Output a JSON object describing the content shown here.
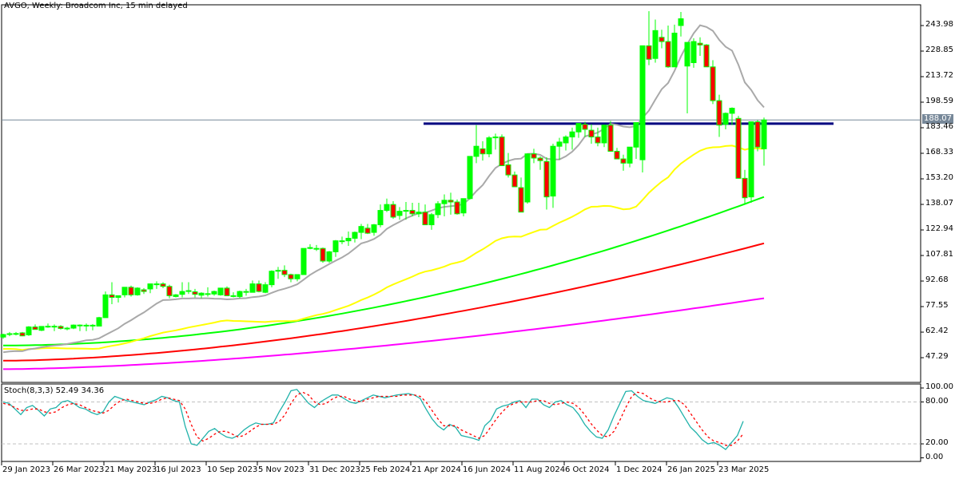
{
  "header": {
    "title": "AVGO, Weekly:  Broadcom Inc, 15 min delayed"
  },
  "stoch_panel": {
    "label": "Stoch(8,3,3) 52.49 34.36",
    "ticks": [
      "100.00",
      "80.00",
      "20.00",
      "0.00"
    ]
  },
  "current_price": "188.07",
  "colors": {
    "bull": "#00FF00",
    "bear": "#FF0000",
    "sma_gray": "#A9A9A9",
    "sma_yellow": "#FFFF00",
    "sma_green": "#00FF00",
    "sma_red": "#FF0000",
    "sma_magenta": "#FF00FF",
    "resistance": "#000080",
    "stoch_main": "#20B2AA",
    "stoch_signal": "#FF0000",
    "price_tag_bg": "#778899"
  },
  "chart_data": [
    {
      "type": "candlestick",
      "title": "AVGO, Weekly:  Broadcom Inc, 15 min delayed",
      "xlabel": "",
      "ylabel": "",
      "ylim": [
        40.0,
        258.0
      ],
      "y_ticks": [
        "243.98",
        "228.85",
        "213.72",
        "198.59",
        "183.46",
        "168.33",
        "153.20",
        "138.07",
        "122.94",
        "107.81",
        "92.68",
        "77.55",
        "62.42",
        "47.29"
      ],
      "x_ticks": [
        "29 Jan 2023",
        "26 Mar 2023",
        "21 May 2023",
        "16 Jul 2023",
        "10 Sep 2023",
        "5 Nov 2023",
        "31 Dec 2023",
        "25 Feb 2024",
        "21 Apr 2024",
        "16 Jun 2024",
        "11 Aug 2024",
        "6 Oct 2024",
        "1 Dec 2024",
        "26 Jan 2025",
        "23 Mar 2025"
      ],
      "current_price": 188.07,
      "horizontal_line": {
        "price": 185.9,
        "color": "#000080",
        "label": "resistance"
      },
      "candles_ohlc": [
        [
          59.5,
          61.5,
          58.5,
          61.0
        ],
        [
          61.0,
          62.5,
          60.0,
          61.5
        ],
        [
          61.5,
          62.5,
          60.5,
          61.6
        ],
        [
          62.0,
          62.5,
          60.0,
          60.2
        ],
        [
          60.8,
          66.0,
          60.2,
          65.5
        ],
        [
          65.5,
          67.0,
          64.0,
          64.0
        ],
        [
          63.5,
          66.0,
          63.0,
          65.8
        ],
        [
          65.8,
          67.5,
          65.0,
          65.9
        ],
        [
          65.9,
          67.0,
          63.0,
          65.9
        ],
        [
          65.8,
          66.5,
          64.0,
          64.6
        ],
        [
          64.6,
          65.5,
          63.5,
          64.8
        ],
        [
          64.8,
          67.0,
          64.2,
          66.6
        ],
        [
          66.6,
          67.0,
          63.0,
          66.3
        ],
        [
          66.3,
          67.5,
          63.0,
          66.5
        ],
        [
          66.5,
          67.2,
          63.5,
          66.5
        ],
        [
          66.0,
          71.5,
          66.0,
          71.0
        ],
        [
          71.0,
          86.5,
          71.0,
          84.5
        ],
        [
          84.5,
          92.0,
          79.0,
          83.0
        ],
        [
          83.0,
          84.0,
          80.0,
          84.0
        ],
        [
          84.5,
          89.0,
          83.0,
          89.0
        ],
        [
          89.0,
          90.0,
          83.5,
          84.5
        ],
        [
          84.5,
          89.0,
          84.0,
          88.5
        ],
        [
          87.5,
          88.5,
          85.0,
          86.5
        ],
        [
          88.0,
          90.5,
          85.5,
          91.0
        ],
        [
          90.5,
          92.5,
          88.0,
          91.0
        ],
        [
          91.0,
          92.0,
          88.5,
          89.5
        ],
        [
          89.5,
          90.5,
          82.5,
          84.0
        ],
        [
          83.5,
          85.0,
          83.0,
          84.5
        ],
        [
          84.8,
          92.0,
          83.0,
          86.5
        ],
        [
          86.5,
          92.0,
          85.0,
          87.0
        ],
        [
          86.3,
          88.0,
          83.0,
          84.8
        ],
        [
          84.3,
          86.0,
          82.5,
          85.5
        ],
        [
          84.8,
          89.0,
          83.5,
          85.2
        ],
        [
          85.0,
          87.0,
          84.0,
          86.5
        ],
        [
          84.5,
          87.5,
          84.0,
          88.5
        ],
        [
          88.5,
          89.5,
          84.0,
          84.0
        ],
        [
          84.0,
          86.0,
          83.0,
          84.0
        ],
        [
          83.5,
          87.0,
          82.5,
          86.5
        ],
        [
          86.5,
          88.0,
          84.0,
          86.0
        ],
        [
          86.0,
          93.0,
          86.0,
          91.0
        ],
        [
          91.0,
          93.0,
          86.0,
          86.5
        ],
        [
          86.0,
          92.0,
          85.5,
          90.5
        ],
        [
          90.5,
          99.0,
          89.0,
          98.5
        ],
        [
          98.5,
          101.0,
          94.0,
          99.0
        ],
        [
          99.0,
          102.0,
          95.0,
          96.5
        ],
        [
          96.5,
          97.0,
          92.0,
          94.0
        ],
        [
          94.0,
          95.5,
          92.5,
          96.5
        ],
        [
          96.5,
          112.0,
          96.5,
          112.0
        ],
        [
          112.0,
          114.5,
          111.5,
          112.5
        ],
        [
          112.0,
          114.0,
          110.5,
          112.0
        ],
        [
          112.0,
          112.5,
          103.5,
          104.5
        ],
        [
          104.5,
          110.5,
          103.5,
          110.0
        ],
        [
          110.0,
          117.0,
          107.0,
          116.5
        ],
        [
          116.5,
          119.0,
          114.5,
          116.0
        ],
        [
          116.5,
          122.0,
          113.5,
          118.0
        ],
        [
          118.0,
          122.0,
          115.5,
          121.5
        ],
        [
          121.5,
          126.5,
          117.5,
          125.0
        ],
        [
          124.0,
          126.5,
          120.5,
          121.0
        ],
        [
          121.5,
          126.5,
          119.5,
          126.0
        ],
        [
          126.0,
          138.0,
          124.5,
          134.5
        ],
        [
          134.5,
          141.5,
          133.5,
          138.0
        ],
        [
          138.0,
          140.0,
          129.5,
          130.5
        ],
        [
          131.5,
          136.5,
          129.0,
          134.0
        ],
        [
          134.0,
          139.5,
          129.0,
          134.5
        ],
        [
          134.5,
          139.0,
          131.0,
          132.5
        ],
        [
          132.5,
          139.0,
          130.5,
          133.5
        ],
        [
          133.5,
          138.0,
          126.0,
          126.0
        ],
        [
          126.0,
          133.0,
          123.0,
          132.0
        ],
        [
          132.0,
          140.0,
          130.0,
          138.5
        ],
        [
          138.5,
          144.0,
          131.0,
          140.5
        ],
        [
          140.5,
          145.0,
          132.0,
          139.5
        ],
        [
          139.5,
          141.0,
          132.0,
          132.5
        ],
        [
          133.0,
          141.0,
          131.0,
          141.5
        ],
        [
          141.5,
          166.5,
          141.0,
          166.5
        ],
        [
          166.5,
          185.0,
          162.5,
          172.5
        ],
        [
          171.0,
          175.5,
          164.0,
          168.0
        ],
        [
          168.0,
          178.5,
          166.0,
          177.5
        ],
        [
          177.5,
          180.0,
          170.5,
          178.0
        ],
        [
          178.0,
          179.5,
          161.5,
          161.0
        ],
        [
          161.5,
          168.5,
          154.0,
          155.5
        ],
        [
          155.5,
          157.5,
          148.5,
          148.5
        ],
        [
          148.0,
          154.0,
          143.5,
          133.5
        ],
        [
          139.5,
          156.5,
          138.5,
          168.0
        ],
        [
          168.0,
          171.0,
          162.5,
          165.5
        ],
        [
          165.5,
          166.5,
          158.5,
          164.0
        ],
        [
          163.5,
          166.0,
          135.0,
          142.5
        ],
        [
          143.0,
          174.0,
          136.0,
          172.5
        ],
        [
          172.5,
          177.5,
          164.5,
          175.0
        ],
        [
          174.5,
          179.0,
          170.0,
          178.0
        ],
        [
          178.0,
          183.5,
          170.5,
          181.0
        ],
        [
          181.0,
          185.0,
          177.5,
          186.0
        ],
        [
          185.5,
          187.0,
          178.0,
          182.5
        ],
        [
          182.0,
          185.5,
          174.0,
          178.0
        ],
        [
          178.0,
          183.5,
          172.5,
          174.5
        ],
        [
          174.5,
          182.5,
          172.0,
          185.0
        ],
        [
          185.0,
          187.5,
          169.5,
          169.5
        ],
        [
          169.5,
          171.5,
          165.0,
          165.0
        ],
        [
          165.0,
          167.5,
          158.0,
          162.5
        ],
        [
          162.5,
          170.0,
          160.0,
          172.0
        ],
        [
          172.0,
          186.0,
          165.0,
          186.5
        ],
        [
          164.5,
          175.0,
          157.0,
          232.0
        ],
        [
          232.0,
          252.5,
          220.5,
          224.0
        ],
        [
          224.5,
          247.5,
          222.0,
          241.0
        ],
        [
          237.0,
          241.5,
          230.5,
          234.5
        ],
        [
          234.5,
          244.0,
          219.0,
          219.5
        ],
        [
          219.5,
          244.5,
          219.5,
          239.5
        ],
        [
          244.0,
          252.0,
          237.5,
          248.0
        ],
        [
          220.0,
          231.0,
          192.0,
          234.0
        ],
        [
          222.0,
          236.5,
          219.0,
          234.5
        ],
        [
          233.5,
          237.0,
          226.0,
          232.5
        ],
        [
          232.5,
          233.0,
          219.5,
          219.5
        ],
        [
          219.5,
          223.5,
          197.5,
          199.5
        ],
        [
          199.5,
          203.0,
          178.0,
          185.0
        ],
        [
          185.5,
          192.5,
          182.5,
          192.0
        ],
        [
          192.0,
          195.5,
          185.0,
          195.0
        ],
        [
          189.0,
          190.5,
          153.5,
          153.5
        ],
        [
          153.5,
          158.5,
          138.5,
          142.0
        ],
        [
          142.5,
          187.0,
          139.0,
          187.0
        ],
        [
          187.0,
          188.0,
          169.5,
          172.0
        ],
        [
          171.0,
          189.5,
          161.0,
          188.07
        ]
      ],
      "moving_averages": [
        {
          "name": "SMA gray",
          "color": "#A9A9A9",
          "start": 50.5,
          "end": 195.5
        },
        {
          "name": "SMA yellow",
          "color": "#FFFF00",
          "start": 52.5,
          "end": 171.0
        },
        {
          "name": "SMA green",
          "color": "#00FF00",
          "start": 54.5,
          "end": 142.5
        },
        {
          "name": "SMA red",
          "color": "#FF0000",
          "start": 45.5,
          "end": 115.0
        },
        {
          "name": "SMA magenta",
          "color": "#FF00FF",
          "start": 40.5,
          "end": 82.5
        }
      ]
    },
    {
      "type": "line",
      "title": "Stoch(8,3,3) 52.49 34.36",
      "ylim": [
        0,
        100
      ],
      "y_ticks": [
        "100.00",
        "80.00",
        "20.00",
        "0.00"
      ],
      "levels": [
        80,
        20
      ],
      "series": [
        {
          "name": "%K",
          "color": "#20B2AA",
          "last": 52.49,
          "values": [
            80,
            78,
            70,
            62,
            72,
            75,
            68,
            60,
            70,
            72,
            80,
            82,
            78,
            72,
            70,
            65,
            62,
            66,
            80,
            88,
            85,
            82,
            80,
            78,
            76,
            80,
            83,
            88,
            86,
            82,
            80,
            45,
            20,
            18,
            28,
            38,
            42,
            35,
            30,
            28,
            32,
            40,
            46,
            50,
            48,
            48,
            50,
            66,
            80,
            96,
            98,
            88,
            78,
            72,
            80,
            85,
            90,
            90,
            85,
            80,
            78,
            82,
            86,
            90,
            88,
            86,
            88,
            90,
            91,
            92,
            90,
            85,
            70,
            56,
            46,
            40,
            48,
            44,
            32,
            30,
            28,
            25,
            46,
            54,
            70,
            74,
            76,
            80,
            82,
            72,
            84,
            84,
            76,
            72,
            80,
            82,
            76,
            72,
            62,
            48,
            38,
            30,
            28,
            40,
            60,
            78,
            95,
            96,
            88,
            82,
            80,
            78,
            82,
            86,
            84,
            72,
            58,
            44,
            36,
            26,
            20,
            22,
            18,
            12,
            22,
            32,
            52.49
          ]
        },
        {
          "name": "%D",
          "color": "#FF0000",
          "last": 34.36,
          "values": [
            78,
            76,
            72,
            68,
            68,
            70,
            70,
            66,
            64,
            66,
            72,
            76,
            78,
            76,
            72,
            68,
            66,
            64,
            68,
            76,
            82,
            84,
            82,
            80,
            78,
            78,
            80,
            84,
            86,
            84,
            82,
            70,
            48,
            30,
            24,
            28,
            34,
            38,
            38,
            34,
            30,
            32,
            38,
            44,
            48,
            48,
            48,
            52,
            62,
            78,
            90,
            94,
            90,
            80,
            76,
            78,
            84,
            88,
            88,
            84,
            82,
            80,
            84,
            86,
            88,
            88,
            88,
            88,
            90,
            90,
            90,
            88,
            80,
            68,
            56,
            46,
            46,
            46,
            40,
            36,
            32,
            28,
            32,
            44,
            56,
            66,
            74,
            78,
            80,
            80,
            80,
            82,
            82,
            78,
            76,
            78,
            80,
            78,
            72,
            62,
            50,
            40,
            32,
            30,
            38,
            54,
            72,
            88,
            94,
            92,
            86,
            82,
            80,
            80,
            82,
            82,
            76,
            64,
            52,
            40,
            30,
            24,
            22,
            18,
            18,
            24,
            34.36
          ]
        }
      ]
    }
  ]
}
